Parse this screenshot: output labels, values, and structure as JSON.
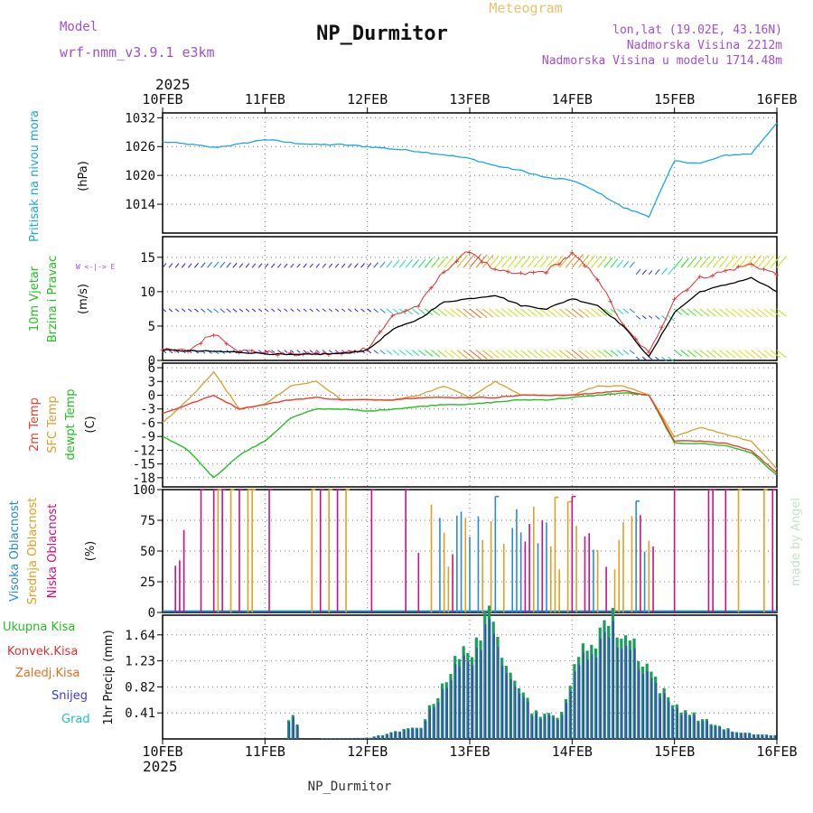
{
  "header": {
    "model_label": "Model",
    "model_name": "wrf-nmm_v3.9.1 e3km",
    "title": "NP_Durmitor",
    "meteogram_label": "Meteogram",
    "lonlat": "lon,lat (19.02E, 43.16N)",
    "elevation": "Nadmorska Visina 2212m",
    "model_elevation": "Nadmorska Visina u modelu 1714.48m",
    "footer": "NP_Durmitor",
    "credit": "made by Angel"
  },
  "colors": {
    "pressure": "#1aa6e6",
    "wind_speed": "#000000",
    "wind_gust": "#e03030",
    "temp_2m": "#e84030",
    "temp_sfc": "#d4a030",
    "dewpoint": "#22c022",
    "cloud_high": "#2a8ad8",
    "cloud_mid": "#e0a020",
    "cloud_low": "#cc1080",
    "precip_total": "#1e9e5e",
    "precip_conv": "#e03030",
    "precip_frozen": "#e07020",
    "precip_snow": "#3a3ad8",
    "precip_graupel": "#20c0c0",
    "model_text": "#a050d0",
    "meteogram_text": "#e8c070"
  },
  "chart_data": [
    {
      "id": "pressure",
      "type": "line",
      "title": "Pritisak na nivou mora",
      "ylabel": "(hPa)",
      "ylim": [
        1008,
        1033
      ],
      "yticks": [
        1014,
        1020,
        1026,
        1032
      ],
      "x_hours": [
        0,
        6,
        12,
        18,
        24,
        30,
        36,
        42,
        48,
        54,
        60,
        66,
        72,
        78,
        84,
        90,
        96,
        102,
        108,
        114,
        120,
        126,
        132,
        138,
        144
      ],
      "series": [
        {
          "name": "Pritisak na nivou mora",
          "values": [
            1027,
            1026.5,
            1025.8,
            1026.5,
            1027.5,
            1026.8,
            1026.4,
            1026.4,
            1026,
            1025.5,
            1025,
            1024.3,
            1023.5,
            1022,
            1021,
            1019.5,
            1019,
            1016.5,
            1013.3,
            1011.5,
            1023,
            1022.5,
            1024.2,
            1024.5,
            1031
          ]
        }
      ]
    },
    {
      "id": "wind",
      "type": "line",
      "title": "10m Vjetar Brzina i Pravac",
      "ylabel": "(m/s)",
      "ylim": [
        0,
        18
      ],
      "yticks": [
        0,
        5,
        10,
        15
      ],
      "direction_legend": "W <-|-> E",
      "x_hours": [
        0,
        6,
        12,
        18,
        24,
        30,
        36,
        42,
        48,
        54,
        60,
        66,
        72,
        78,
        84,
        90,
        96,
        102,
        108,
        114,
        120,
        126,
        132,
        138,
        144
      ],
      "series": [
        {
          "name": "Brzina",
          "values": [
            1.5,
            1.4,
            1.3,
            1.2,
            1.0,
            0.8,
            0.9,
            1.0,
            1.5,
            4.5,
            6.0,
            8.5,
            9.0,
            9.5,
            8.0,
            7.5,
            9.0,
            8.0,
            5.0,
            0.5,
            7.0,
            10.0,
            11.0,
            12.0,
            10.0
          ]
        },
        {
          "name": "Udar",
          "values": [
            1.5,
            1.4,
            4.0,
            1.4,
            1.2,
            0.8,
            1.0,
            1.0,
            1.8,
            6.5,
            8.0,
            13.0,
            16.0,
            13.0,
            12.5,
            13.0,
            15.5,
            12.0,
            5.0,
            1.0,
            9.0,
            12.0,
            13.0,
            14.0,
            12.5
          ]
        }
      ]
    },
    {
      "id": "temperature",
      "type": "line",
      "ylabel": "(C)",
      "ylim": [
        -20,
        7
      ],
      "yticks": [
        -18,
        -15,
        -12,
        -9,
        -6,
        -3,
        0,
        3,
        6
      ],
      "x_hours": [
        0,
        6,
        12,
        18,
        24,
        30,
        36,
        42,
        48,
        54,
        60,
        66,
        72,
        78,
        84,
        90,
        96,
        102,
        108,
        114,
        120,
        126,
        132,
        138,
        144
      ],
      "series": [
        {
          "name": "2m Temp",
          "values": [
            -4,
            -2,
            0,
            -3,
            -2,
            -1,
            -0.5,
            -1,
            -1,
            -1,
            -0.5,
            -0.5,
            -0.5,
            -0.5,
            0,
            0,
            0,
            0.5,
            1,
            0,
            -10,
            -10,
            -10.5,
            -12,
            -17
          ]
        },
        {
          "name": "SFC Temp",
          "values": [
            -6,
            -1,
            5,
            -3,
            -2,
            2,
            3,
            -1,
            -1,
            -1,
            0,
            2,
            -0.5,
            3,
            0,
            0,
            0,
            2,
            2,
            0,
            -9,
            -7,
            -8.5,
            -10,
            -16
          ]
        },
        {
          "name": "dewpt Temp",
          "values": [
            -9,
            -12,
            -18,
            -13,
            -10,
            -5,
            -3,
            -3,
            -3.5,
            -3,
            -2.5,
            -2,
            -2,
            -1.5,
            -1,
            -1,
            -0.5,
            0,
            0.5,
            0,
            -10.5,
            -10.5,
            -11,
            -12.5,
            -17.5
          ]
        }
      ]
    },
    {
      "id": "clouds",
      "type": "bar",
      "ylabel": "(%)",
      "ylim": [
        0,
        100
      ],
      "yticks": [
        0,
        25,
        50,
        75,
        100
      ],
      "series_names": [
        "Visoka Oblacnost",
        "Srednja Oblacnost",
        "Niska Oblacnost"
      ]
    },
    {
      "id": "precip",
      "type": "bar",
      "ylabel": "1hr Precip (mm)",
      "ylim": [
        0,
        1.95
      ],
      "yticks": [
        0.41,
        0.82,
        1.23,
        1.64
      ],
      "series_names": [
        "Ukupna Kisa",
        "Konvek.Kisa",
        "Zaledj.Kisa",
        "Snijeg",
        "Grad"
      ],
      "hourly_profile": [
        {
          "hour": 0,
          "value": 0
        },
        {
          "hour": 28,
          "value": 0
        },
        {
          "hour": 29,
          "value": 0.3
        },
        {
          "hour": 30,
          "value": 0.36
        },
        {
          "hour": 31,
          "value": 0.2
        },
        {
          "hour": 32,
          "value": 0
        },
        {
          "hour": 48,
          "value": 0.02
        },
        {
          "hour": 60,
          "value": 0.2
        },
        {
          "hour": 66,
          "value": 1.0
        },
        {
          "hour": 72,
          "value": 1.5
        },
        {
          "hour": 76,
          "value": 1.85
        },
        {
          "hour": 81,
          "value": 1.2
        },
        {
          "hour": 86,
          "value": 0.45
        },
        {
          "hour": 92,
          "value": 0.32
        },
        {
          "hour": 98,
          "value": 1.4
        },
        {
          "hour": 104,
          "value": 1.9
        },
        {
          "hour": 110,
          "value": 1.5
        },
        {
          "hour": 118,
          "value": 0.6
        },
        {
          "hour": 126,
          "value": 0.3
        },
        {
          "hour": 134,
          "value": 0.1
        },
        {
          "hour": 144,
          "value": 0.05
        }
      ]
    }
  ],
  "x_axis": {
    "year": "2025",
    "day_labels": [
      "10FEB",
      "11FEB",
      "12FEB",
      "13FEB",
      "14FEB",
      "15FEB",
      "16FEB"
    ],
    "total_hours": 144
  },
  "panel_labels": {
    "pressure": [
      "Pritisak na nivou mora"
    ],
    "wind": [
      "10m Vjetar",
      "Brzina i Pravac"
    ],
    "temperature": [
      "2m Temp",
      "SFC Temp",
      "dewpt Temp"
    ],
    "clouds": [
      "Visoka Oblacnost",
      "Srednja Oblacnost",
      "Niska Oblacnost"
    ],
    "precip": [
      "Ukupna Kisa",
      "Konvek.Kisa",
      "Zaledj.Kisa",
      "Snijeg",
      "Grad"
    ]
  }
}
